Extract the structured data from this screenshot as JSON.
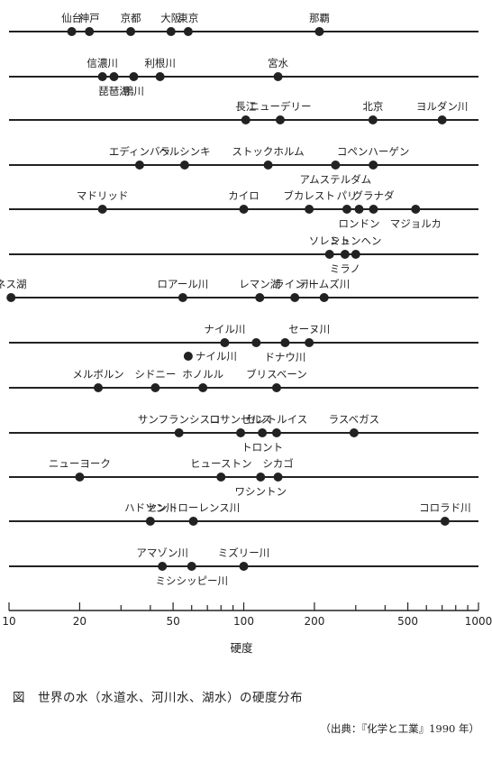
{
  "chart_data": {
    "type": "scatter",
    "xscale": "log",
    "xlim": [
      10,
      1000
    ],
    "xlabel": "硬度",
    "xticks": [
      10,
      20,
      50,
      100,
      200,
      500,
      1000
    ],
    "rows": [
      {
        "points": [
          {
            "name": "仙台",
            "value": 18.5,
            "pos": "above"
          },
          {
            "name": "神戸",
            "value": 22,
            "pos": "above"
          },
          {
            "name": "京都",
            "value": 33,
            "pos": "above"
          },
          {
            "name": "大阪",
            "value": 49,
            "pos": "above"
          },
          {
            "name": "東京",
            "value": 58,
            "pos": "above"
          },
          {
            "name": "那覇",
            "value": 210,
            "pos": "above"
          }
        ]
      },
      {
        "points": [
          {
            "name": "信濃川",
            "value": 25,
            "pos": "above"
          },
          {
            "name": "琵琶湖",
            "value": 28,
            "pos": "below"
          },
          {
            "name": "鴨川",
            "value": 34,
            "pos": "below"
          },
          {
            "name": "利根川",
            "value": 44,
            "pos": "above"
          },
          {
            "name": "宮水",
            "value": 140,
            "pos": "above"
          }
        ]
      },
      {
        "points": [
          {
            "name": "長江",
            "value": 102,
            "pos": "above"
          },
          {
            "name": "ニューデリー",
            "value": 143,
            "pos": "above"
          },
          {
            "name": "北京",
            "value": 355,
            "pos": "above"
          },
          {
            "name": "ヨルダン川",
            "value": 700,
            "pos": "above"
          }
        ]
      },
      {
        "points": [
          {
            "name": "エディンバラ",
            "value": 36,
            "pos": "above"
          },
          {
            "name": "ヘルシンキ",
            "value": 56,
            "pos": "above"
          },
          {
            "name": "ストックホルム",
            "value": 127,
            "pos": "above"
          },
          {
            "name": "アムステルダム",
            "value": 246,
            "pos": "below"
          },
          {
            "name": "コペンハーゲン",
            "value": 356,
            "pos": "above"
          }
        ]
      },
      {
        "points": [
          {
            "name": "マドリッド",
            "value": 25,
            "pos": "above"
          },
          {
            "name": "カイロ",
            "value": 100,
            "pos": "above"
          },
          {
            "name": "ブカレスト",
            "value": 190,
            "pos": "above"
          },
          {
            "name": "パリ",
            "value": 275,
            "pos": "above"
          },
          {
            "name": "ロンドン",
            "value": 310,
            "pos": "below"
          },
          {
            "name": "グラナダ",
            "value": 357,
            "pos": "above"
          },
          {
            "name": "マジョルカ",
            "value": 540,
            "pos": "below"
          }
        ]
      },
      {
        "points": [
          {
            "name": "ソレント",
            "value": 232,
            "pos": "above"
          },
          {
            "name": "ミラノ",
            "value": 270,
            "pos": "below"
          },
          {
            "name": "ミュンヘン",
            "value": 300,
            "pos": "above"
          }
        ]
      },
      {
        "points": [
          {
            "name": "ネス湖",
            "value": 10.2,
            "pos": "above"
          },
          {
            "name": "ロアール川",
            "value": 55,
            "pos": "above"
          },
          {
            "name": "レマン湖",
            "value": 117,
            "pos": "above"
          },
          {
            "name": "ライン川",
            "value": 165,
            "pos": "above"
          },
          {
            "name": "テームズ川",
            "value": 220,
            "pos": "above"
          }
        ]
      },
      {
        "points": [
          {
            "name": "ナイル川",
            "value": 83,
            "pos": "above"
          },
          {
            "name": "ドナウ川",
            "value": 150,
            "pos": "below"
          },
          {
            "name": "セーヌ川",
            "value": 190,
            "pos": "above"
          },
          {
            "name": "",
            "value": 113,
            "pos": "above"
          }
        ]
      },
      {
        "points": [
          {
            "name": "メルボルン",
            "value": 24,
            "pos": "above"
          },
          {
            "name": "シドニー",
            "value": 42,
            "pos": "above"
          },
          {
            "name": "ホノルル",
            "value": 67,
            "pos": "above"
          },
          {
            "name": "ブリスベーン",
            "value": 138,
            "pos": "above"
          }
        ]
      },
      {
        "points": [
          {
            "name": "サンフランシスコ",
            "value": 53,
            "pos": "above"
          },
          {
            "name": "ロサンゼルス",
            "value": 97,
            "pos": "above"
          },
          {
            "name": "トロント",
            "value": 120,
            "pos": "below"
          },
          {
            "name": "セントルイス",
            "value": 138,
            "pos": "above"
          },
          {
            "name": "ラスベガス",
            "value": 295,
            "pos": "above"
          }
        ]
      },
      {
        "points": [
          {
            "name": "ニューヨーク",
            "value": 20,
            "pos": "above"
          },
          {
            "name": "ヒューストン",
            "value": 80,
            "pos": "above"
          },
          {
            "name": "ワシントン",
            "value": 118,
            "pos": "below"
          },
          {
            "name": "シカゴ",
            "value": 140,
            "pos": "above"
          }
        ]
      },
      {
        "points": [
          {
            "name": "ハドソン川",
            "value": 40,
            "pos": "above"
          },
          {
            "name": "セントローレンス川",
            "value": 61,
            "pos": "above"
          },
          {
            "name": "コロラド川",
            "value": 720,
            "pos": "above"
          }
        ]
      },
      {
        "points": [
          {
            "name": "アマゾン川",
            "value": 45,
            "pos": "above"
          },
          {
            "name": "ミシシッピー川",
            "value": 60,
            "pos": "below"
          },
          {
            "name": "ミズリー川",
            "value": 100,
            "pos": "above"
          }
        ]
      }
    ],
    "standalone_points": [
      {
        "name": "ナイル川",
        "value": 58
      }
    ]
  },
  "caption": "図　世界の水（水道水、河川水、湖水）の硬度分布",
  "source": "（出典：『化学と工業』1990 年）"
}
